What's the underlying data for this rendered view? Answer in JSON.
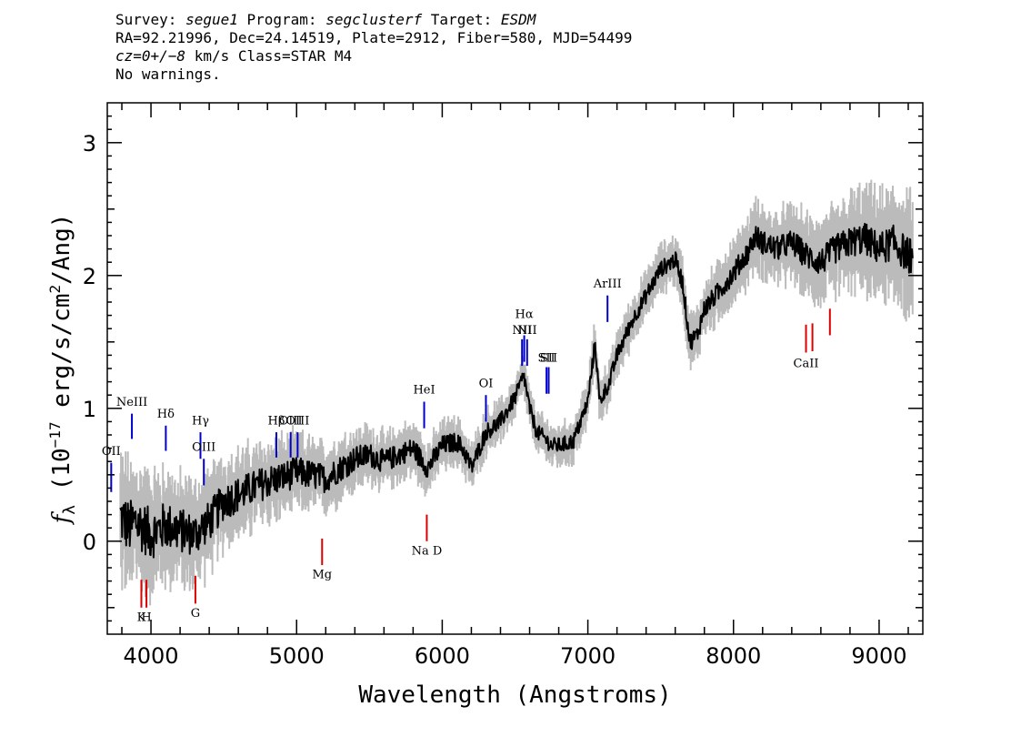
{
  "header": {
    "line1": {
      "survey_label": "Survey: ",
      "survey": "segue1",
      "program_label": " Program: ",
      "program": "segclusterf",
      "target_label": " Target: ",
      "target": "ESDM"
    },
    "line2": "RA=92.21996, Dec=24.14519, Plate=2912, Fiber=580, MJD=54499",
    "line3": {
      "cz_label": "cz",
      "cz_rest": "=0+/−8",
      "cz_units": " km/s Class=STAR M4"
    },
    "line4": "No warnings."
  },
  "chart_data": {
    "type": "line",
    "xlabel": "Wavelength (Angstroms)",
    "ylabel": "fλ (10^-17 erg/s/cm^2/Ang)",
    "ylabel_parts": {
      "f": "f",
      "lambda": "λ",
      "p1": " (10",
      "e1": "−17",
      "p2": " erg/s/cm",
      "e2": "2",
      "p3": "/Ang)"
    },
    "xlim": [
      3700,
      9300
    ],
    "ylim": [
      -0.7,
      3.3
    ],
    "x_ticks": [
      4000,
      5000,
      6000,
      7000,
      8000,
      9000
    ],
    "y_ticks": [
      0,
      1,
      2,
      3
    ],
    "colors": {
      "flux": "#000000",
      "error": "#bbbbbb",
      "emission": "#0000cc",
      "absorption": "#dd0000"
    },
    "flux_anchors": [
      [
        3780,
        0.2
      ],
      [
        3850,
        0.1
      ],
      [
        3900,
        0.15
      ],
      [
        3950,
        0.1
      ],
      [
        4000,
        0.05
      ],
      [
        4100,
        0.12
      ],
      [
        4200,
        0.08
      ],
      [
        4300,
        0.05
      ],
      [
        4400,
        0.15
      ],
      [
        4500,
        0.3
      ],
      [
        4600,
        0.35
      ],
      [
        4700,
        0.4
      ],
      [
        4800,
        0.45
      ],
      [
        4900,
        0.48
      ],
      [
        5000,
        0.52
      ],
      [
        5100,
        0.5
      ],
      [
        5200,
        0.47
      ],
      [
        5300,
        0.55
      ],
      [
        5400,
        0.62
      ],
      [
        5500,
        0.65
      ],
      [
        5600,
        0.6
      ],
      [
        5700,
        0.65
      ],
      [
        5800,
        0.7
      ],
      [
        5900,
        0.55
      ],
      [
        6000,
        0.72
      ],
      [
        6100,
        0.75
      ],
      [
        6150,
        0.68
      ],
      [
        6200,
        0.55
      ],
      [
        6300,
        0.82
      ],
      [
        6400,
        0.9
      ],
      [
        6500,
        1.08
      ],
      [
        6560,
        1.25
      ],
      [
        6600,
        1.0
      ],
      [
        6650,
        0.82
      ],
      [
        6700,
        0.78
      ],
      [
        6750,
        0.72
      ],
      [
        6800,
        0.72
      ],
      [
        6900,
        0.75
      ],
      [
        7000,
        1.05
      ],
      [
        7050,
        1.5
      ],
      [
        7080,
        1.05
      ],
      [
        7150,
        1.2
      ],
      [
        7200,
        1.4
      ],
      [
        7300,
        1.65
      ],
      [
        7400,
        1.85
      ],
      [
        7500,
        2.05
      ],
      [
        7600,
        2.12
      ],
      [
        7650,
        1.95
      ],
      [
        7700,
        1.5
      ],
      [
        7750,
        1.55
      ],
      [
        7800,
        1.75
      ],
      [
        7900,
        1.88
      ],
      [
        8000,
        2.02
      ],
      [
        8100,
        2.18
      ],
      [
        8150,
        2.3
      ],
      [
        8200,
        2.25
      ],
      [
        8300,
        2.2
      ],
      [
        8400,
        2.25
      ],
      [
        8500,
        2.15
      ],
      [
        8600,
        2.1
      ],
      [
        8700,
        2.2
      ],
      [
        8800,
        2.25
      ],
      [
        8900,
        2.28
      ],
      [
        9000,
        2.2
      ],
      [
        9100,
        2.25
      ],
      [
        9200,
        2.15
      ]
    ],
    "noise_amplitude": [
      [
        3700,
        0.22
      ],
      [
        4500,
        0.14
      ],
      [
        5500,
        0.09
      ],
      [
        6500,
        0.06
      ],
      [
        7500,
        0.06
      ],
      [
        8500,
        0.1
      ],
      [
        9300,
        0.14
      ]
    ],
    "error_amplitude": [
      [
        3700,
        0.32
      ],
      [
        4500,
        0.22
      ],
      [
        5500,
        0.14
      ],
      [
        6500,
        0.1
      ],
      [
        7500,
        0.12
      ],
      [
        8500,
        0.2
      ],
      [
        9300,
        0.32
      ]
    ],
    "emission_lines": [
      {
        "label": "OII",
        "x": 3727,
        "y1": 0.37,
        "y2": 0.59,
        "ly": 0.65
      },
      {
        "label": "NeIII",
        "x": 3869,
        "y1": 0.77,
        "y2": 0.96,
        "ly": 1.02
      },
      {
        "label": "Hδ",
        "x": 4102,
        "y1": 0.68,
        "y2": 0.87,
        "ly": 0.93
      },
      {
        "label": "Hγ",
        "x": 4340,
        "y1": 0.62,
        "y2": 0.82,
        "ly": 0.88
      },
      {
        "label": "OIII",
        "x": 4363,
        "y1": 0.42,
        "y2": 0.62,
        "ly": 0.68
      },
      {
        "label": "Hβ",
        "x": 4861,
        "y1": 0.63,
        "y2": 0.82,
        "ly": 0.88
      },
      {
        "label": "OIII",
        "x": 4959,
        "y1": 0.63,
        "y2": 0.82,
        "ly": 0.88
      },
      {
        "label": "OIII",
        "x": 5007,
        "y1": 0.63,
        "y2": 0.82,
        "ly": 0.88
      },
      {
        "label": "HeI",
        "x": 5876,
        "y1": 0.85,
        "y2": 1.05,
        "ly": 1.11
      },
      {
        "label": "OI",
        "x": 6300,
        "y1": 0.9,
        "y2": 1.1,
        "ly": 1.16
      },
      {
        "label": "NII",
        "x": 6548,
        "y1": 1.32,
        "y2": 1.52,
        "ly": 1.56
      },
      {
        "label": "Hα",
        "x": 6563,
        "y1": 1.35,
        "y2": 1.55,
        "ly": 1.68
      },
      {
        "label": "NII",
        "x": 6583,
        "y1": 1.32,
        "y2": 1.52,
        "ly": 1.56
      },
      {
        "label": "SII",
        "x": 6716,
        "y1": 1.11,
        "y2": 1.31,
        "ly": 1.35
      },
      {
        "label": "SII",
        "x": 6731,
        "y1": 1.11,
        "y2": 1.31,
        "ly": 1.35
      },
      {
        "label": "ArIII",
        "x": 7135,
        "y1": 1.65,
        "y2": 1.85,
        "ly": 1.91
      }
    ],
    "absorption_lines": [
      {
        "label": "K",
        "x": 3934,
        "y1": -0.5,
        "y2": -0.29,
        "ly": -0.6
      },
      {
        "label": "H",
        "x": 3969,
        "y1": -0.5,
        "y2": -0.29,
        "ly": -0.6
      },
      {
        "label": "G",
        "x": 4305,
        "y1": -0.47,
        "y2": -0.26,
        "ly": -0.57
      },
      {
        "label": "Mg",
        "x": 5175,
        "y1": -0.18,
        "y2": 0.02,
        "ly": -0.28
      },
      {
        "label": "Na D",
        "x": 5894,
        "y1": 0.0,
        "y2": 0.2,
        "ly": -0.1
      },
      {
        "label": "CaII",
        "x": 8498,
        "y1": 1.42,
        "y2": 1.63,
        "ly": 1.31
      },
      {
        "label": "",
        "x": 8542,
        "y1": 1.43,
        "y2": 1.64
      },
      {
        "label": "",
        "x": 8662,
        "y1": 1.55,
        "y2": 1.75
      }
    ]
  }
}
